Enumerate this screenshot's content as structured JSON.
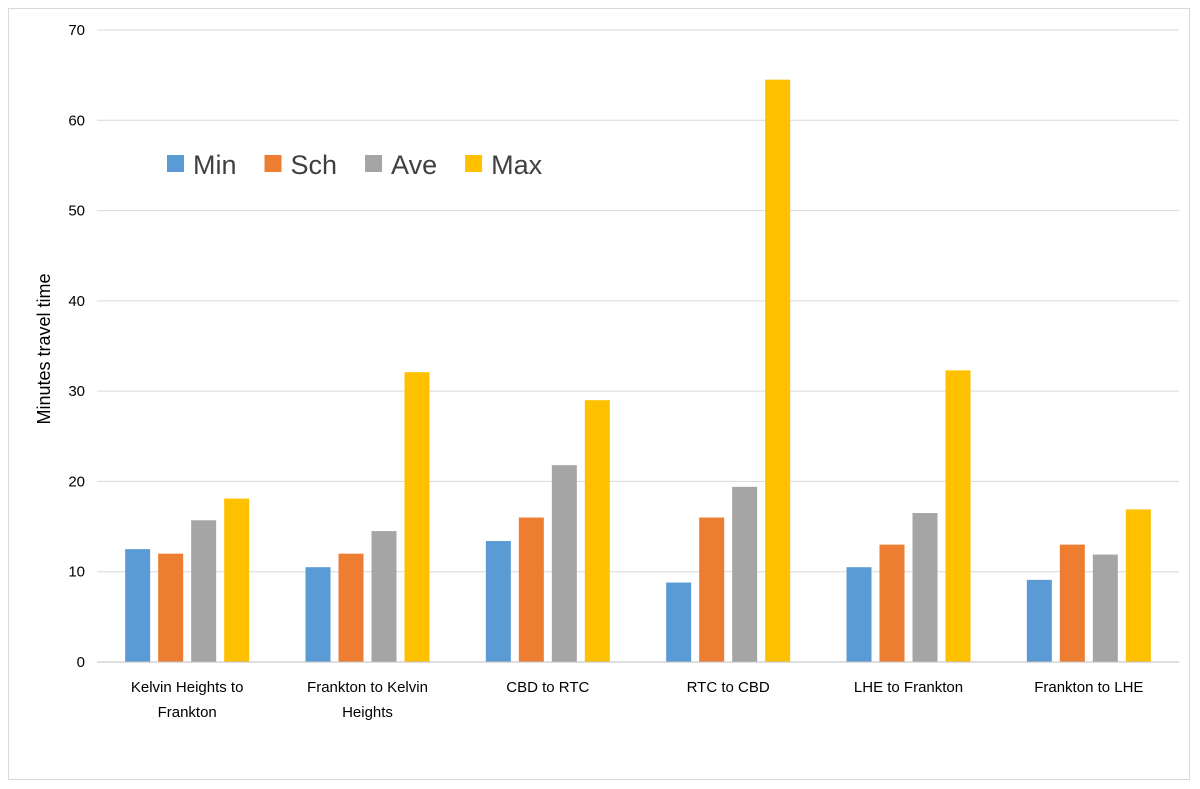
{
  "chart_data": {
    "type": "bar",
    "title": "",
    "xlabel": "",
    "ylabel": "Minutes travel time",
    "ylim": [
      0,
      70
    ],
    "yticks": [
      0,
      10,
      20,
      30,
      40,
      50,
      60,
      70
    ],
    "grid": true,
    "legend_position": "top-left",
    "categories": [
      "Kelvin Heights to Frankton",
      "Frankton to Kelvin Heights",
      "CBD to RTC",
      "RTC to CBD",
      "LHE to Frankton",
      "Frankton to LHE"
    ],
    "series": [
      {
        "name": "Min",
        "color": "#5B9BD5",
        "values": [
          12.5,
          10.5,
          13.4,
          8.8,
          10.5,
          9.1
        ]
      },
      {
        "name": "Sch",
        "color": "#ED7D31",
        "values": [
          12,
          12,
          16,
          16,
          13,
          13
        ]
      },
      {
        "name": "Ave",
        "color": "#A5A5A5",
        "values": [
          15.7,
          14.5,
          21.8,
          19.4,
          16.5,
          11.9
        ]
      },
      {
        "name": "Max",
        "color": "#FFC000",
        "values": [
          18.1,
          32.1,
          29.0,
          64.5,
          32.3,
          16.9
        ]
      }
    ]
  }
}
